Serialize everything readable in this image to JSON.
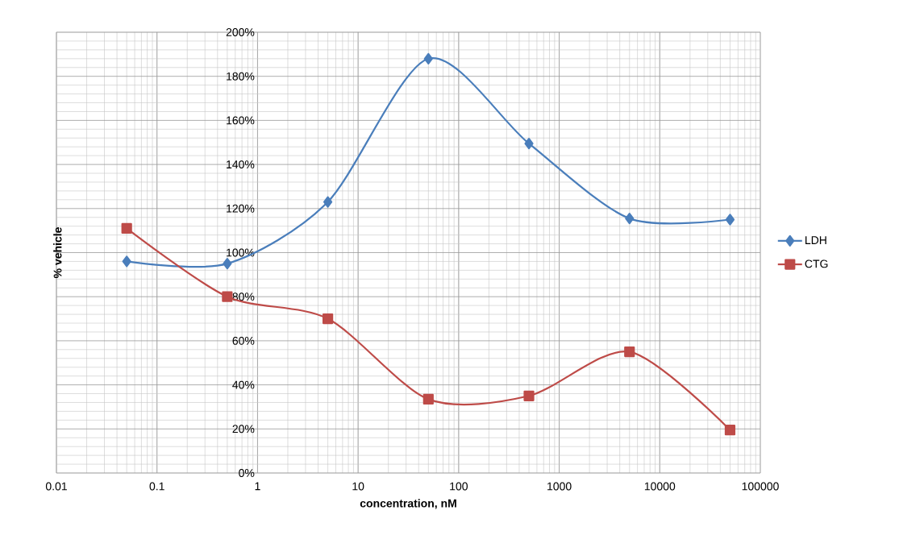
{
  "chart_data": {
    "type": "line",
    "xlabel": "concentration, nM",
    "ylabel": "% vehicle",
    "x": [
      0.05,
      0.5,
      5,
      50,
      500,
      5000,
      50000
    ],
    "series": [
      {
        "name": "LDH",
        "color": "#4a7ebb",
        "marker": "diamond",
        "values": [
          96,
          95,
          123,
          188,
          149.5,
          115.5,
          115
        ]
      },
      {
        "name": "CTG",
        "color": "#be4b48",
        "marker": "square",
        "values": [
          111,
          80,
          70,
          33.5,
          35,
          55,
          19.5
        ]
      }
    ],
    "log": "x",
    "xlim": [
      0.01,
      100000
    ],
    "ylim": [
      0,
      200
    ],
    "xticks": [
      {
        "value": 0.01,
        "label": "0.01"
      },
      {
        "value": 0.1,
        "label": "0.1"
      },
      {
        "value": 1,
        "label": "1"
      },
      {
        "value": 10,
        "label": "10"
      },
      {
        "value": 100,
        "label": "100"
      },
      {
        "value": 1000,
        "label": "1000"
      },
      {
        "value": 10000,
        "label": "10000"
      },
      {
        "value": 100000,
        "label": "100000"
      }
    ],
    "yticks": [
      {
        "value": 0,
        "label": "0%"
      },
      {
        "value": 20,
        "label": "20%"
      },
      {
        "value": 40,
        "label": "40%"
      },
      {
        "value": 60,
        "label": "60%"
      },
      {
        "value": 80,
        "label": "80%"
      },
      {
        "value": 100,
        "label": "100%"
      },
      {
        "value": 120,
        "label": "120%"
      },
      {
        "value": 140,
        "label": "140%"
      },
      {
        "value": 160,
        "label": "160%"
      },
      {
        "value": 180,
        "label": "180%"
      },
      {
        "value": 200,
        "label": "200%"
      }
    ],
    "grid": true,
    "legend": "right"
  }
}
